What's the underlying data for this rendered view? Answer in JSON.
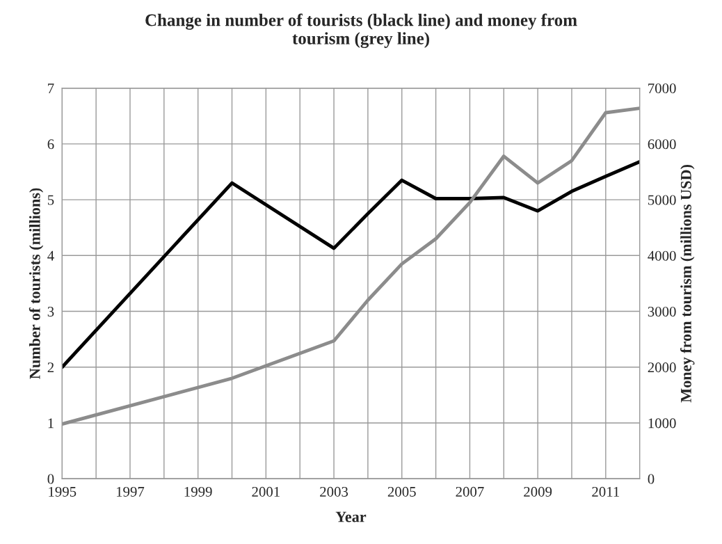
{
  "chart_data": {
    "type": "line",
    "title": "Change in number of tourists (black line) and money from\ntourism (grey line)",
    "xlabel": "Year",
    "ylabel": "Number of tourists (millions)",
    "y2label": "Money from tourism (millions USD)",
    "x": [
      1995,
      2000,
      2003,
      2004,
      2005,
      2006,
      2007,
      2008,
      2009,
      2010,
      2011,
      2012
    ],
    "series": [
      {
        "color": "#000000",
        "values": [
          2.0,
          5.3,
          4.13,
          4.75,
          5.35,
          5.02,
          5.02,
          5.04,
          4.8,
          5.15,
          5.42,
          5.68
        ]
      },
      {
        "color": "#8c8c8c",
        "axis": "y2",
        "values": [
          980,
          1800,
          2470,
          3200,
          3850,
          4300,
          4950,
          5780,
          5300,
          5700,
          6560,
          6640
        ]
      }
    ],
    "xlim": [
      1995,
      2012
    ],
    "xticks": [
      1995,
      {
        "value": 1996,
        "label": null
      },
      1997,
      {
        "value": 1998,
        "label": null
      },
      1999,
      {
        "value": 2000,
        "label": null
      },
      2001,
      {
        "value": 2002,
        "label": null
      },
      2003,
      {
        "value": 2004,
        "label": null
      },
      2005,
      {
        "value": 2006,
        "label": null
      },
      2007,
      {
        "value": 2008,
        "label": null
      },
      2009,
      {
        "value": 2010,
        "label": null
      },
      2011,
      {
        "value": 2012,
        "label": null
      }
    ],
    "ylim": [
      0,
      7
    ],
    "yticks": [
      0,
      1,
      2,
      3,
      4,
      5,
      6,
      7
    ],
    "y2lim": [
      0,
      7000
    ],
    "y2ticks": [
      0,
      1000,
      2000,
      3000,
      4000,
      5000,
      6000,
      7000
    ],
    "grid": true,
    "marker": "none",
    "line_style": "solid"
  }
}
